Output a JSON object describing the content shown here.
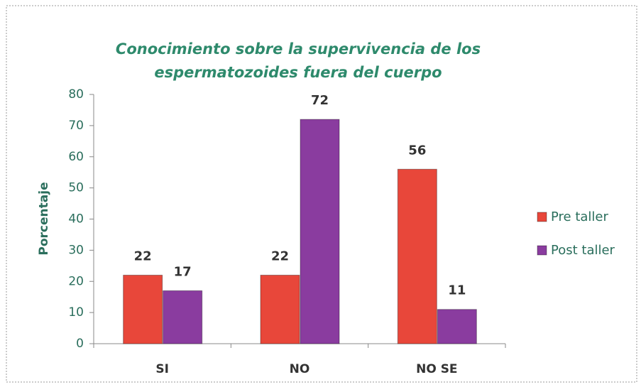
{
  "chart_data": {
    "type": "bar",
    "title": [
      "Conocimiento sobre la supervivencia de los",
      "espermatozoides fuera del cuerpo"
    ],
    "y_label": "Porcentaje",
    "categories": [
      "SI",
      "NO",
      "NO SE"
    ],
    "series": [
      {
        "name": "Pre taller",
        "color": "#e8473a",
        "values": [
          22,
          22,
          56
        ]
      },
      {
        "name": "Post taller",
        "color": "#8a3c9f",
        "values": [
          17,
          72,
          11
        ]
      }
    ],
    "ylim": [
      0,
      80
    ],
    "yticks": [
      0,
      10,
      20,
      30,
      40,
      50,
      60,
      70,
      80
    ],
    "legend": "right"
  }
}
